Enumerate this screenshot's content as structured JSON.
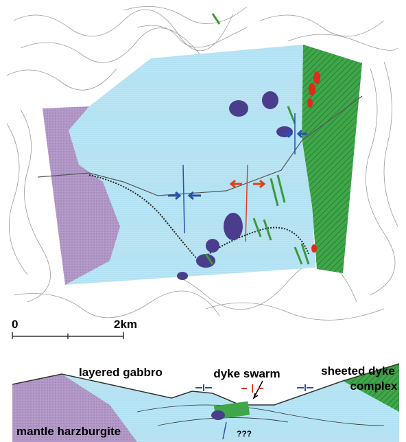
{
  "scale_bar": {
    "start": "0",
    "end": "2km"
  },
  "cross_section": {
    "labels": {
      "layered_gabbro": "layered gabbro",
      "dyke_swarm": "dyke swarm",
      "sheeted_dyke_line1": "sheeted dyke",
      "sheeted_dyke_line2": "complex",
      "mantle_harzburgite": "mantle harzburgite",
      "unknown": "???"
    }
  }
}
